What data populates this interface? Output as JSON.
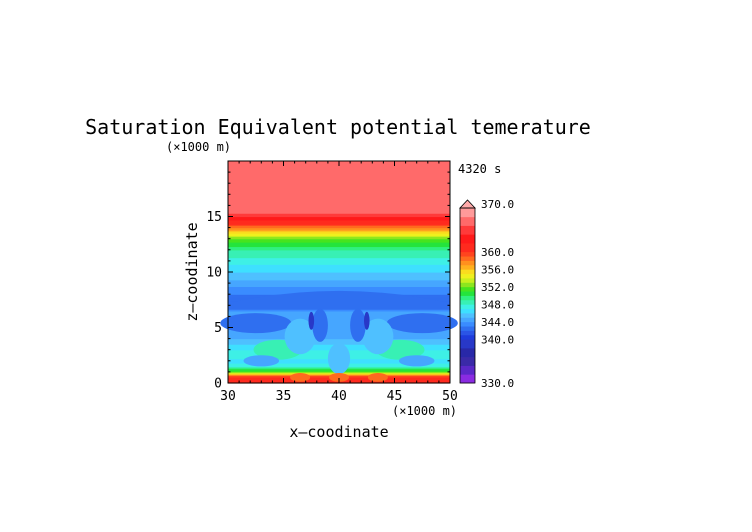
{
  "chart_data": {
    "type": "heatmap",
    "title": "Saturation Equivalent potential temerature",
    "xlabel": "x—coodinate",
    "ylabel": "z—coodinate",
    "x_unit": "(×1000 m)",
    "y_unit": "(×1000 m)",
    "time_label": "4320 s",
    "xlim": [
      30,
      50
    ],
    "ylim": [
      0,
      20
    ],
    "x_ticks": [
      "30",
      "35",
      "40",
      "45",
      "50"
    ],
    "y_ticks": [
      "0",
      "5",
      "10",
      "15"
    ],
    "colorbar": {
      "min": 330,
      "max": 370,
      "extend": "max",
      "labels": [
        "370.0",
        "360.0",
        "356.0",
        "352.0",
        "348.0",
        "344.0",
        "340.0",
        "330.0"
      ],
      "levels": [
        330,
        332,
        334,
        336,
        338,
        340,
        341,
        342,
        343,
        344,
        345,
        346,
        347,
        348,
        349,
        350,
        351,
        352,
        353,
        354,
        355,
        356,
        357,
        358,
        359,
        360,
        362,
        364,
        366,
        368,
        370
      ],
      "colors": [
        "#8a2be2",
        "#5a28c8",
        "#3a2aa8",
        "#2828a8",
        "#2838c8",
        "#1e3cdc",
        "#2a55e6",
        "#2f6ff0",
        "#3a8cff",
        "#46a6ff",
        "#4fc0ff",
        "#3ee0ff",
        "#3ef0e6",
        "#38f0b4",
        "#30f080",
        "#24e43c",
        "#46e41e",
        "#8ce61e",
        "#c8f01e",
        "#f0f01e",
        "#fadc1e",
        "#ffb01e",
        "#ff901e",
        "#ff6a1e",
        "#ff441e",
        "#ff2a1e",
        "#ff1a1a",
        "#ff3a3a",
        "#ff6a6a",
        "#ff9a9a"
      ]
    },
    "profile": [
      {
        "z": 0.0,
        "value": 360.0
      },
      {
        "z": 0.3,
        "value": 358.0
      },
      {
        "z": 0.6,
        "value": 360.0
      },
      {
        "z": 1.0,
        "value": 352.0
      },
      {
        "z": 1.5,
        "value": 348.0
      },
      {
        "z": 2.0,
        "value": 346.0
      },
      {
        "z": 2.5,
        "value": 348.0
      },
      {
        "z": 3.5,
        "value": 346.0
      },
      {
        "z": 4.5,
        "value": 344.0
      },
      {
        "z": 5.5,
        "value": 345.0
      },
      {
        "z": 6.5,
        "value": 344.0
      },
      {
        "z": 7.3,
        "value": 342.5
      },
      {
        "z": 8.0,
        "value": 343.0
      },
      {
        "z": 9.0,
        "value": 344.5
      },
      {
        "z": 10.0,
        "value": 346.0
      },
      {
        "z": 11.0,
        "value": 347.5
      },
      {
        "z": 11.5,
        "value": 348.5
      },
      {
        "z": 12.0,
        "value": 349.0
      },
      {
        "z": 12.5,
        "value": 350.5
      },
      {
        "z": 13.0,
        "value": 352.0
      },
      {
        "z": 13.5,
        "value": 355.0
      },
      {
        "z": 14.0,
        "value": 358.0
      },
      {
        "z": 14.5,
        "value": 361.0
      },
      {
        "z": 15.0,
        "value": 364.0
      },
      {
        "z": 15.5,
        "value": 367.0
      },
      {
        "z": 20.0,
        "value": 368.0
      }
    ]
  }
}
